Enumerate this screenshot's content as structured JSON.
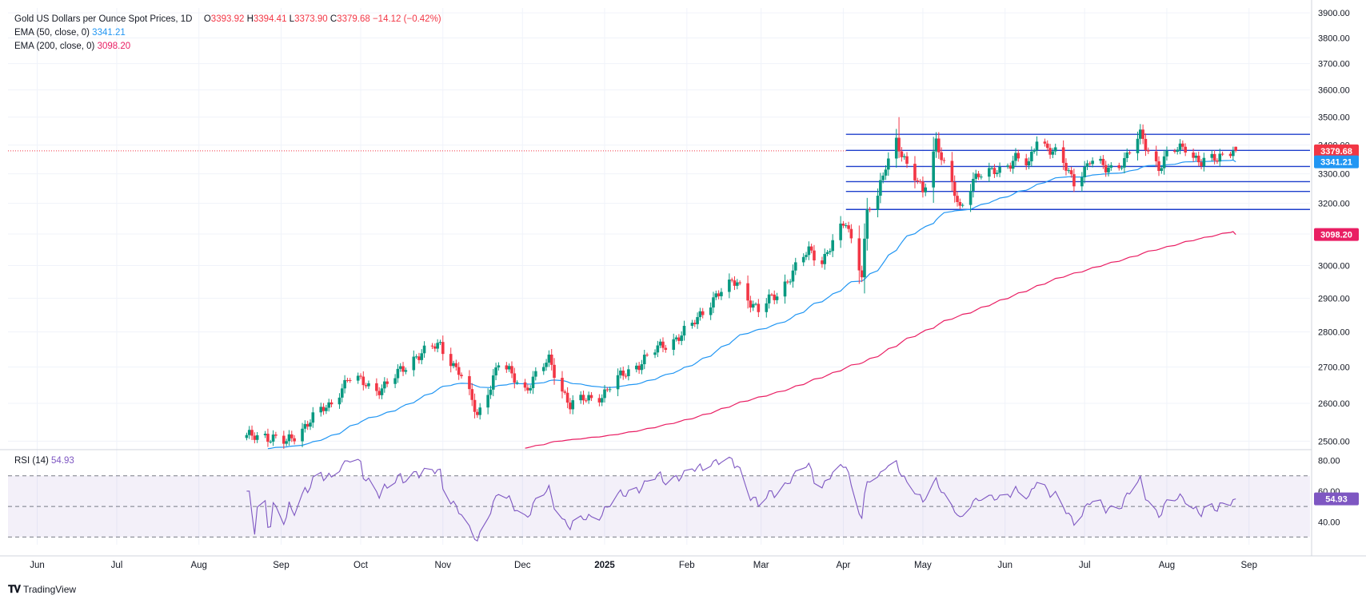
{
  "header": {
    "title": "Gold US Dollars per Ounce Spot Prices, 1D",
    "open_label": "O",
    "open": "3393.92",
    "high_label": "H",
    "high": "3394.41",
    "low_label": "L",
    "low": "3373.90",
    "close_label": "C",
    "close": "3379.68",
    "change": "−14.12 (−0.42%)",
    "ema50_label": "EMA (50, close, 0)",
    "ema50_value": "3341.21",
    "ema200_label": "EMA (200, close, 0)",
    "ema200_value": "3098.20",
    "rsi_label": "RSI (14)",
    "rsi_value": "54.93"
  },
  "footer": {
    "brand": "TradingView"
  },
  "colors": {
    "up": "#089981",
    "down": "#f23645",
    "ema50": "#2196f3",
    "ema200": "#e91e63",
    "rsi": "#7e57c2",
    "support_lines": "#1e3fcc",
    "grid": "#f0f3fa"
  },
  "chart_data": {
    "type": "candlestick",
    "price_axis": {
      "ticks": [
        "3900.00",
        "3800.00",
        "3700.00",
        "3600.00",
        "3500.00",
        "3400.00",
        "3300.00",
        "3200.00",
        "3100.00",
        "3000.00",
        "2900.00",
        "2800.00",
        "2700.00",
        "2600.00",
        "2500.00"
      ],
      "range": [
        2480,
        3920
      ],
      "scale": "log"
    },
    "rsi_axis": {
      "ticks": [
        "80.00",
        "60.00",
        "40.00"
      ],
      "range": [
        25,
        85
      ],
      "band": [
        30,
        70
      ],
      "mid": 50
    },
    "time_axis": {
      "labels": [
        "Jun",
        "Jul",
        "Aug",
        "Sep",
        "Oct",
        "Nov",
        "Dec",
        "2025",
        "Feb",
        "Mar",
        "Apr",
        "May",
        "Jun",
        "Jul",
        "Aug",
        "Sep"
      ]
    },
    "price_labels": {
      "close": "3379.68",
      "ema50": "3341.21",
      "ema200": "3098.20"
    },
    "horizontal_levels": [
      3438,
      3381,
      3325,
      3273,
      3240,
      3180
    ],
    "series": [
      {
        "name": "Gold",
        "anchors": [
          [
            "2024-08-19",
            2508
          ],
          [
            "2024-08-26",
            2518
          ],
          [
            "2024-09-03",
            2493
          ],
          [
            "2024-09-12",
            2558
          ],
          [
            "2024-09-19",
            2590
          ],
          [
            "2024-09-26",
            2670
          ],
          [
            "2024-10-07",
            2640
          ],
          [
            "2024-10-12",
            2655
          ],
          [
            "2024-10-22",
            2735
          ],
          [
            "2024-10-31",
            2760
          ],
          [
            "2024-11-07",
            2690
          ],
          [
            "2024-11-14",
            2565
          ],
          [
            "2024-11-22",
            2710
          ],
          [
            "2024-12-02",
            2640
          ],
          [
            "2024-12-11",
            2718
          ],
          [
            "2024-12-19",
            2595
          ],
          [
            "2024-12-31",
            2625
          ],
          [
            "2025-01-10",
            2690
          ],
          [
            "2025-01-22",
            2755
          ],
          [
            "2025-02-03",
            2815
          ],
          [
            "2025-02-11",
            2905
          ],
          [
            "2025-02-20",
            2950
          ],
          [
            "2025-02-28",
            2860
          ],
          [
            "2025-03-07",
            2915
          ],
          [
            "2025-03-19",
            3045
          ],
          [
            "2025-03-24",
            3020
          ],
          [
            "2025-04-02",
            3135
          ],
          [
            "2025-04-08",
            2980
          ],
          [
            "2025-04-10",
            3175
          ],
          [
            "2025-04-14",
            3215
          ],
          [
            "2025-04-17",
            3330
          ],
          [
            "2025-04-21",
            3425
          ],
          [
            "2025-04-25",
            3320
          ],
          [
            "2025-05-01",
            3240
          ],
          [
            "2025-05-06",
            3420
          ],
          [
            "2025-05-09",
            3325
          ],
          [
            "2025-05-15",
            3180
          ],
          [
            "2025-05-20",
            3290
          ],
          [
            "2025-05-27",
            3300
          ],
          [
            "2025-06-05",
            3355
          ],
          [
            "2025-06-10",
            3325
          ],
          [
            "2025-06-13",
            3430
          ],
          [
            "2025-06-20",
            3368
          ],
          [
            "2025-06-27",
            3275
          ],
          [
            "2025-07-03",
            3345
          ],
          [
            "2025-07-09",
            3315
          ],
          [
            "2025-07-16",
            3348
          ],
          [
            "2025-07-22",
            3430
          ],
          [
            "2025-07-29",
            3325
          ],
          [
            "2025-08-01",
            3360
          ],
          [
            "2025-08-08",
            3398
          ],
          [
            "2025-08-14",
            3337
          ],
          [
            "2025-08-20",
            3348
          ],
          [
            "2025-08-22",
            3372
          ],
          [
            "2025-08-26",
            3393
          ],
          [
            "2025-08-27",
            3379.68
          ]
        ]
      }
    ]
  }
}
